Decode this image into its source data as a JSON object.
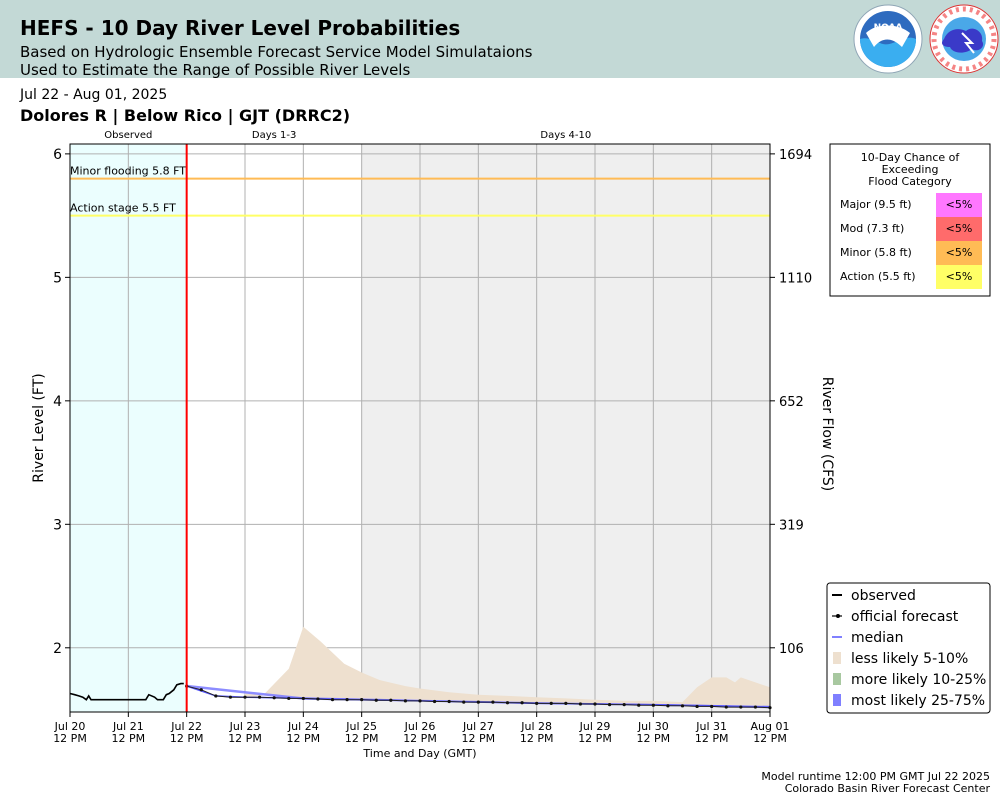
{
  "header": {
    "title": "HEFS - 10 Day River Level Probabilities",
    "subtitle1": "Based on Hydrologic Ensemble Forecast Service Model Simulataions",
    "subtitle2": "Used to Estimate the Range of Possible River Levels",
    "noaa_logo_text": "NOAA",
    "nws_logo_text": "NATIONAL WEATHER SERVICE"
  },
  "date_range": "Jul 22 - Aug 01, 2025",
  "station": "Dolores R | Below Rico | GJT (DRRC2)",
  "footer": {
    "runtime": "Model runtime 12:00 PM GMT Jul 22 2025",
    "center": "Colorado Basin River Forecast Center"
  },
  "colors": {
    "banner": "#c3d9d6",
    "observed_shade": "#ebfefe",
    "days4_shade": "#efefef",
    "now_line": "#ff0000",
    "minor": "#ffbb55",
    "action": "#ffff66",
    "less_likely": "#eee0cf",
    "more_likely": "#a8c8a0",
    "most_likely": "#7f7fff",
    "median": "#5555ff",
    "major_cell": "#ff77ff",
    "mod_cell": "#ff6b6b",
    "minor_cell": "#ffbb55",
    "action_cell": "#ffff66"
  },
  "chart_data": {
    "type": "line",
    "xlabel": "Time and Day (GMT)",
    "ylabel": "River Level (FT)",
    "ylabel_right": "River Flow (CFS)",
    "x_ticks": [
      {
        "day": "Jul 20",
        "time": "12 PM"
      },
      {
        "day": "Jul 21",
        "time": "12 PM"
      },
      {
        "day": "Jul 22",
        "time": "12 PM"
      },
      {
        "day": "Jul 23",
        "time": "12 PM"
      },
      {
        "day": "Jul 24",
        "time": "12 PM"
      },
      {
        "day": "Jul 25",
        "time": "12 PM"
      },
      {
        "day": "Jul 26",
        "time": "12 PM"
      },
      {
        "day": "Jul 27",
        "time": "12 PM"
      },
      {
        "day": "Jul 28",
        "time": "12 PM"
      },
      {
        "day": "Jul 29",
        "time": "12 PM"
      },
      {
        "day": "Jul 30",
        "time": "12 PM"
      },
      {
        "day": "Jul 31",
        "time": "12 PM"
      },
      {
        "day": "Aug 01",
        "time": "12 PM"
      }
    ],
    "xlim": [
      0,
      12
    ],
    "ylim": [
      1.48,
      6.08
    ],
    "y_ticks": [
      2,
      3,
      4,
      5,
      6
    ],
    "y_right_ticks": [
      {
        "stage": 2,
        "label": "106"
      },
      {
        "stage": 3,
        "label": "319"
      },
      {
        "stage": 4,
        "label": "652"
      },
      {
        "stage": 5,
        "label": "1110"
      },
      {
        "stage": 6,
        "label": "1694"
      }
    ],
    "regions": [
      {
        "label": "Observed",
        "x0": 0,
        "x1": 2
      },
      {
        "label": "Days 1-3",
        "x0": 2,
        "x1": 5
      },
      {
        "label": "Days 4-10",
        "x0": 5,
        "x1": 12
      }
    ],
    "now_x": 2,
    "thresholds": [
      {
        "label": "Minor flooding 5.8 FT",
        "value": 5.8,
        "kind": "minor"
      },
      {
        "label": "Action stage 5.5 FT",
        "value": 5.5,
        "kind": "action"
      }
    ],
    "observed": {
      "x": [
        0,
        0.08,
        0.15,
        0.22,
        0.28,
        0.32,
        0.36,
        0.4,
        1.3,
        1.35,
        1.45,
        1.5,
        1.6,
        1.65,
        1.7,
        1.78,
        1.83,
        1.9,
        1.95
      ],
      "y": [
        1.63,
        1.62,
        1.61,
        1.6,
        1.58,
        1.61,
        1.58,
        1.58,
        1.58,
        1.62,
        1.6,
        1.58,
        1.58,
        1.62,
        1.63,
        1.66,
        1.7,
        1.71,
        1.71
      ]
    },
    "official_forecast": {
      "x": [
        2.0,
        2.25,
        2.5,
        2.75,
        3.0,
        3.25,
        3.5,
        3.75,
        4.0,
        4.25,
        4.5,
        4.75,
        5.0,
        5.25,
        5.5,
        5.75,
        6.0,
        6.25,
        6.5,
        6.75,
        7.0,
        7.25,
        7.5,
        7.75,
        8.0,
        8.25,
        8.5,
        8.75,
        9.0,
        9.25,
        9.5,
        9.75,
        10.0,
        10.25,
        10.5,
        10.75,
        11.0,
        11.25,
        11.5,
        11.75,
        12.0
      ],
      "y": [
        1.69,
        1.66,
        1.61,
        1.6,
        1.6,
        1.6,
        1.595,
        1.59,
        1.59,
        1.585,
        1.58,
        1.58,
        1.58,
        1.575,
        1.575,
        1.57,
        1.57,
        1.565,
        1.565,
        1.56,
        1.56,
        1.56,
        1.555,
        1.555,
        1.55,
        1.55,
        1.55,
        1.545,
        1.545,
        1.54,
        1.54,
        1.535,
        1.535,
        1.53,
        1.53,
        1.525,
        1.525,
        1.52,
        1.52,
        1.52,
        1.515
      ]
    },
    "median": {
      "x": [
        2.0,
        2.5,
        3.0,
        4.0,
        5.0,
        6.0,
        7.0,
        8.0,
        9.0,
        10.0,
        11.0,
        12.0
      ],
      "y": [
        1.69,
        1.61,
        1.6,
        1.59,
        1.58,
        1.57,
        1.56,
        1.55,
        1.545,
        1.54,
        1.53,
        1.52
      ]
    },
    "less_likely_upper": {
      "x": [
        3.0,
        3.3,
        3.75,
        4.0,
        4.3,
        4.7,
        5.0,
        5.3,
        5.75,
        6.0,
        6.5,
        7.0,
        7.5,
        8.0,
        8.5,
        9.0,
        9.5,
        10.0,
        10.5,
        10.75,
        11.0,
        11.25,
        11.4,
        11.5,
        11.75,
        12.0
      ],
      "y": [
        1.6,
        1.61,
        1.83,
        2.17,
        2.05,
        1.87,
        1.8,
        1.74,
        1.69,
        1.67,
        1.64,
        1.62,
        1.61,
        1.6,
        1.59,
        1.58,
        1.57,
        1.57,
        1.56,
        1.68,
        1.76,
        1.76,
        1.72,
        1.76,
        1.72,
        1.68
      ]
    },
    "most_likely_band": {
      "x": [
        2.0,
        4.0,
        6.0,
        8.0,
        10.0,
        12.0
      ],
      "lower": [
        1.68,
        1.58,
        1.565,
        1.545,
        1.53,
        1.51
      ],
      "upper": [
        1.7,
        1.6,
        1.58,
        1.56,
        1.545,
        1.53
      ]
    },
    "legend": [
      {
        "label": "observed",
        "kind": "observed"
      },
      {
        "label": "official forecast",
        "kind": "official"
      },
      {
        "label": "median",
        "kind": "median"
      },
      {
        "label": "less likely 5-10%",
        "kind": "less"
      },
      {
        "label": "more likely 10-25%",
        "kind": "more"
      },
      {
        "label": "most likely 25-75%",
        "kind": "most"
      }
    ],
    "legend_position": "bottom-right",
    "grid": true
  },
  "chance_table": {
    "title_lines": [
      "10-Day Chance of",
      "Exceeding",
      "Flood Category"
    ],
    "rows": [
      {
        "label": "Major (9.5 ft)",
        "value": "<5%",
        "color": "#ff77ff"
      },
      {
        "label": "Mod (7.3 ft)",
        "value": "<5%",
        "color": "#ff6b6b"
      },
      {
        "label": "Minor (5.8 ft)",
        "value": "<5%",
        "color": "#ffbb55"
      },
      {
        "label": "Action (5.5 ft)",
        "value": "<5%",
        "color": "#ffff66"
      }
    ]
  }
}
